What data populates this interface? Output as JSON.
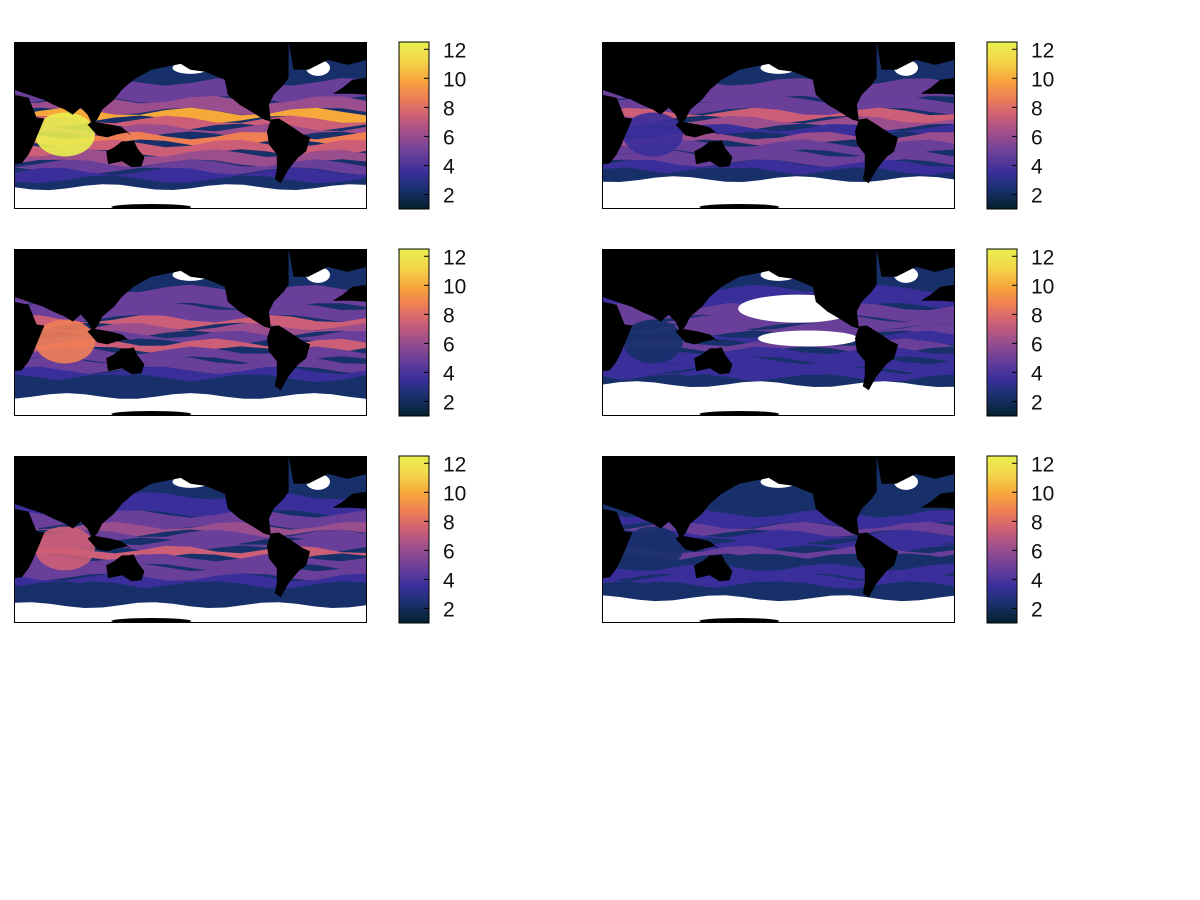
{
  "colormap": {
    "name": "thermal",
    "stops": [
      "#04202c",
      "#18306a",
      "#3a2f9a",
      "#6a3f9a",
      "#9a4e8e",
      "#cc5f77",
      "#ef7e55",
      "#f7a83a",
      "#f3d64a",
      "#e8f04f"
    ]
  },
  "colors": {
    "land": "#000000",
    "masked": "#ffffff",
    "frame": "#000000"
  },
  "colorbar": {
    "range": [
      1,
      12.5
    ],
    "ticks": [
      2,
      4,
      6,
      8,
      10,
      12
    ]
  },
  "panels": [
    {
      "id": "panel-1",
      "intensity": 0.62,
      "ice_lat": -58,
      "description_of_mask": "none"
    },
    {
      "id": "panel-2",
      "intensity": 0.42,
      "ice_lat": -50,
      "description_of_mask": "partial"
    },
    {
      "id": "panel-3",
      "intensity": 0.45,
      "ice_lat": -60,
      "description_of_mask": "none"
    },
    {
      "id": "panel-4",
      "intensity": 0.3,
      "ice_lat": -48,
      "description_of_mask": "large"
    },
    {
      "id": "panel-5",
      "intensity": 0.38,
      "ice_lat": -62,
      "description_of_mask": "small"
    },
    {
      "id": "panel-6",
      "intensity": 0.22,
      "ice_lat": -55,
      "description_of_mask": "partial"
    }
  ]
}
